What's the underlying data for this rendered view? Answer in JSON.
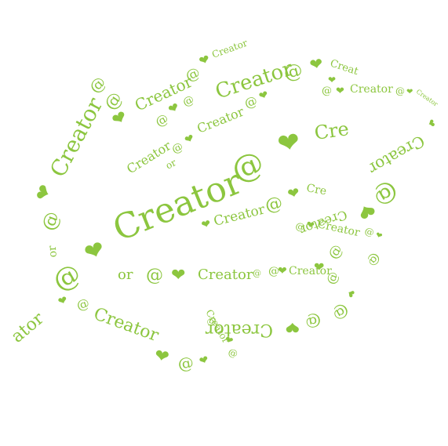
{
  "artwork": {
    "phrase": "Creator @ ❤",
    "word": "Creator",
    "at": "@",
    "heart": "❤",
    "fragment_cre": "Cre",
    "fragment_creat": "Creat",
    "fragment_or": "or",
    "fragment_ator": "ator",
    "accent_color": "#8cc63f",
    "background_color": "#ffffff",
    "shape": "leaf"
  }
}
